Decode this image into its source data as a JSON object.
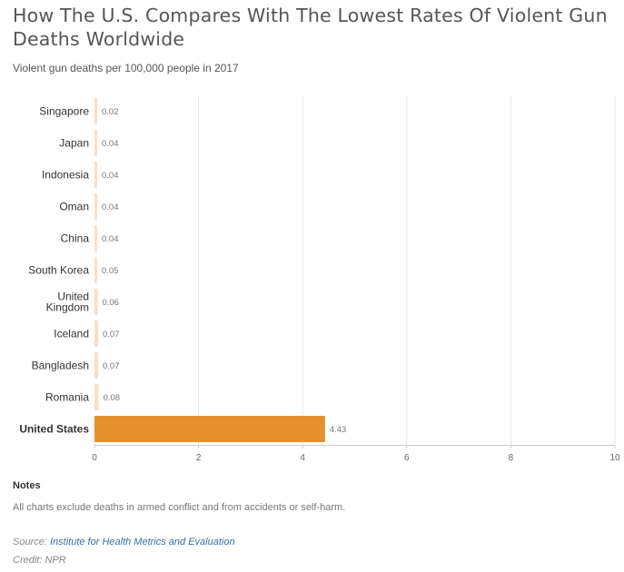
{
  "title": "How The U.S. Compares With The Lowest Rates Of Violent Gun Deaths Worldwide",
  "subtitle": "Violent gun deaths per 100,000 people in 2017",
  "notes": {
    "heading": "Notes",
    "text": "All charts exclude deaths in armed conflict and from accidents or self-harm."
  },
  "source": {
    "label": "Source:",
    "link_text": "Institute for Health Metrics and Evaluation"
  },
  "credit": "Credit: NPR",
  "colors": {
    "bar_default": "#f9dfc9",
    "bar_highlight": "#e4912d",
    "grid": "#e6e6e6",
    "axis": "#cccccc"
  },
  "chart_data": {
    "type": "bar",
    "orientation": "horizontal",
    "categories": [
      "Singapore",
      "Japan",
      "Indonesia",
      "Oman",
      "China",
      "South Korea",
      "United Kingdom",
      "Iceland",
      "Bangladesh",
      "Romania",
      "United States"
    ],
    "category_lines": [
      [
        "Singapore"
      ],
      [
        "Japan"
      ],
      [
        "Indonesia"
      ],
      [
        "Oman"
      ],
      [
        "China"
      ],
      [
        "South Korea"
      ],
      [
        "United",
        "Kingdom"
      ],
      [
        "Iceland"
      ],
      [
        "Bangladesh"
      ],
      [
        "Romania"
      ],
      [
        "United States"
      ]
    ],
    "values": [
      0.02,
      0.04,
      0.04,
      0.04,
      0.04,
      0.05,
      0.06,
      0.07,
      0.07,
      0.08,
      4.43
    ],
    "value_labels": [
      "0.02",
      "0.04",
      "0.04",
      "0.04",
      "0.04",
      "0.05",
      "0.06",
      "0.07",
      "0.07",
      "0.08",
      "4.43"
    ],
    "highlight": "United States",
    "xlim": [
      0,
      10
    ],
    "xticks": [
      0,
      2,
      4,
      6,
      8,
      10
    ],
    "grid": true,
    "legend": "none"
  }
}
